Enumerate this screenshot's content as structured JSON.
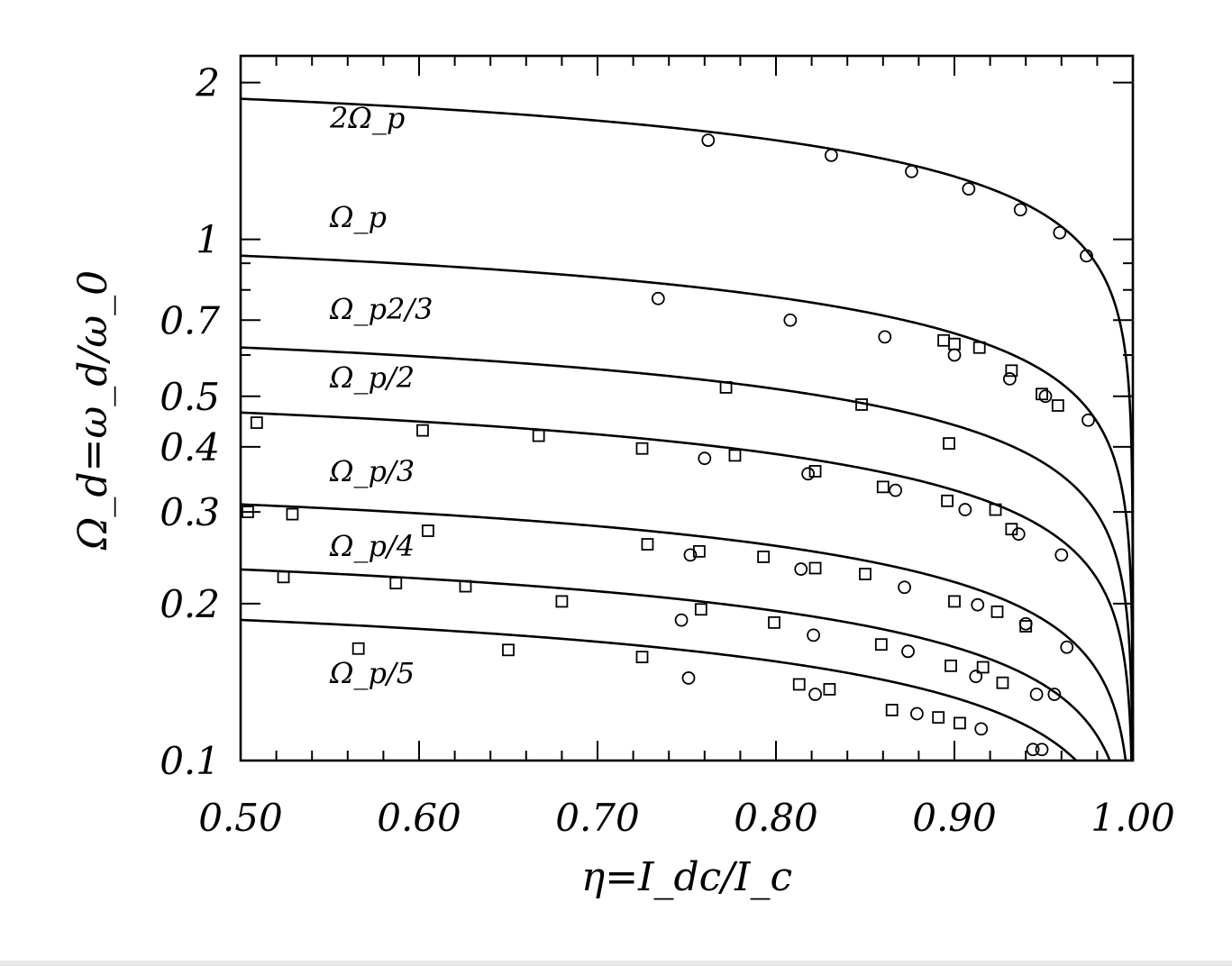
{
  "chart_data": {
    "type": "line",
    "title": "",
    "xlabel": "η=I_dc/I_c",
    "ylabel": "Ω_d=ω_d/ω_0",
    "xlim": [
      0.5,
      1.0
    ],
    "ylim": [
      0.1,
      2.25
    ],
    "yscale": "log",
    "grid": false,
    "legend": "none",
    "x_ticks": [
      "0.50",
      "0.60",
      "0.70",
      "0.80",
      "0.90",
      "1.00"
    ],
    "y_ticks": [
      "0.1",
      "0.2",
      "0.3",
      "0.4",
      "0.5",
      "0.7",
      "1",
      "2"
    ],
    "curve_labels": [
      "2Ω_p",
      "Ω_p",
      "Ω_p2/3",
      "Ω_p/2",
      "Ω_p/3",
      "Ω_p/4",
      "Ω_p/5"
    ],
    "curve_factors": [
      2,
      1,
      0.6667,
      0.5,
      0.3333,
      0.25,
      0.2
    ],
    "circles": [
      [
        0.762,
        1.55
      ],
      [
        0.831,
        1.45
      ],
      [
        0.876,
        1.35
      ],
      [
        0.908,
        1.25
      ],
      [
        0.937,
        1.14
      ],
      [
        0.959,
        1.03
      ],
      [
        0.974,
        0.93
      ],
      [
        0.734,
        0.77
      ],
      [
        0.808,
        0.7
      ],
      [
        0.861,
        0.65
      ],
      [
        0.9,
        0.6
      ],
      [
        0.931,
        0.54
      ],
      [
        0.951,
        0.5
      ],
      [
        0.975,
        0.45
      ],
      [
        0.76,
        0.38
      ],
      [
        0.818,
        0.355
      ],
      [
        0.867,
        0.33
      ],
      [
        0.906,
        0.303
      ],
      [
        0.936,
        0.272
      ],
      [
        0.96,
        0.248
      ],
      [
        0.752,
        0.248
      ],
      [
        0.814,
        0.233
      ],
      [
        0.872,
        0.215
      ],
      [
        0.913,
        0.199
      ],
      [
        0.94,
        0.183
      ],
      [
        0.963,
        0.165
      ],
      [
        0.747,
        0.186
      ],
      [
        0.821,
        0.174
      ],
      [
        0.874,
        0.162
      ],
      [
        0.912,
        0.145
      ],
      [
        0.946,
        0.134
      ],
      [
        0.956,
        0.134
      ],
      [
        0.751,
        0.144
      ],
      [
        0.822,
        0.134
      ],
      [
        0.879,
        0.123
      ],
      [
        0.915,
        0.115
      ],
      [
        0.944,
        0.105
      ],
      [
        0.949,
        0.105
      ]
    ],
    "squares": [
      [
        0.504,
        0.3
      ],
      [
        0.529,
        0.297
      ],
      [
        0.605,
        0.276
      ],
      [
        0.728,
        0.26
      ],
      [
        0.757,
        0.252
      ],
      [
        0.793,
        0.246
      ],
      [
        0.822,
        0.234
      ],
      [
        0.85,
        0.228
      ],
      [
        0.9,
        0.202
      ],
      [
        0.924,
        0.193
      ],
      [
        0.94,
        0.181
      ],
      [
        0.509,
        0.445
      ],
      [
        0.602,
        0.43
      ],
      [
        0.667,
        0.42
      ],
      [
        0.725,
        0.397
      ],
      [
        0.777,
        0.385
      ],
      [
        0.822,
        0.359
      ],
      [
        0.86,
        0.335
      ],
      [
        0.896,
        0.315
      ],
      [
        0.923,
        0.303
      ],
      [
        0.932,
        0.278
      ],
      [
        0.772,
        0.52
      ],
      [
        0.848,
        0.482
      ],
      [
        0.897,
        0.406
      ],
      [
        0.524,
        0.225
      ],
      [
        0.587,
        0.219
      ],
      [
        0.626,
        0.216
      ],
      [
        0.68,
        0.202
      ],
      [
        0.758,
        0.195
      ],
      [
        0.799,
        0.184
      ],
      [
        0.566,
        0.164
      ],
      [
        0.65,
        0.163
      ],
      [
        0.725,
        0.158
      ],
      [
        0.813,
        0.14
      ],
      [
        0.83,
        0.137
      ],
      [
        0.859,
        0.167
      ],
      [
        0.898,
        0.152
      ],
      [
        0.916,
        0.151
      ],
      [
        0.927,
        0.141
      ],
      [
        0.894,
        0.64
      ],
      [
        0.9,
        0.63
      ],
      [
        0.914,
        0.62
      ],
      [
        0.932,
        0.56
      ],
      [
        0.949,
        0.505
      ],
      [
        0.958,
        0.48
      ],
      [
        0.865,
        0.125
      ],
      [
        0.891,
        0.121
      ],
      [
        0.903,
        0.118
      ]
    ]
  }
}
